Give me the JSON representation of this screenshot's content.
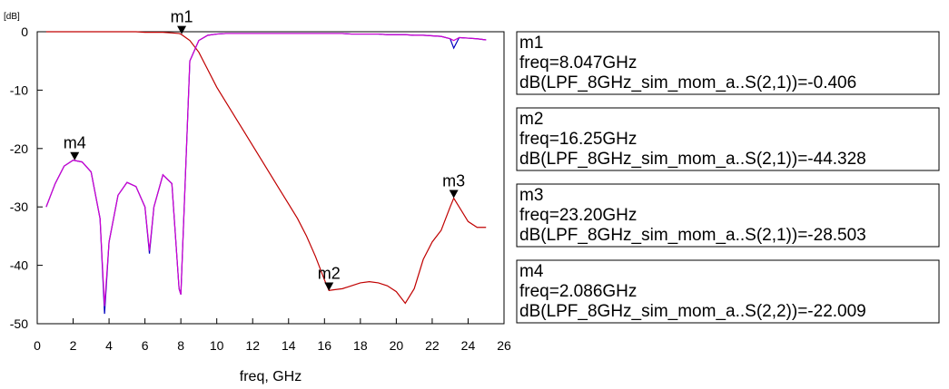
{
  "chart_data": {
    "type": "line",
    "ylabel": "[dB]",
    "xlabel": "freq, GHz",
    "xlim": [
      0,
      26
    ],
    "xticks": [
      0,
      2,
      4,
      6,
      8,
      10,
      12,
      14,
      16,
      18,
      20,
      22,
      24,
      26
    ],
    "ylim": [
      -50,
      0
    ],
    "yticks": [
      0,
      -10,
      -20,
      -30,
      -40,
      -50
    ],
    "x": [
      0.5,
      1,
      1.5,
      2,
      2.5,
      3,
      3.5,
      3.75,
      4,
      4.5,
      5,
      5.5,
      6,
      6.25,
      6.5,
      7,
      7.5,
      7.9,
      8,
      8.5,
      9,
      9.5,
      10,
      10.5,
      11,
      11.5,
      12,
      12.5,
      13,
      13.5,
      14,
      14.5,
      15,
      15.5,
      16,
      16.25,
      16.5,
      17,
      17.5,
      18,
      18.5,
      19,
      19.5,
      20,
      20.5,
      21,
      21.5,
      22,
      22.5,
      23,
      23.2,
      23.5,
      24,
      24.5,
      25
    ],
    "series": [
      {
        "color": "#c00000",
        "values": [
          0,
          0,
          0,
          0,
          0,
          0,
          0,
          0,
          0,
          0,
          0,
          0,
          -0.1,
          -0.1,
          -0.1,
          -0.1,
          -0.2,
          -0.3,
          -0.4,
          -1.5,
          -3.5,
          -6.5,
          -9.5,
          -12,
          -14.5,
          -17,
          -19.5,
          -22,
          -24.5,
          -27,
          -29.5,
          -32,
          -35,
          -38.5,
          -42.5,
          -44.3,
          -44.2,
          -44,
          -43.5,
          -43,
          -42.8,
          -43,
          -43.5,
          -44.5,
          -46.5,
          -44,
          -39,
          -36,
          -34,
          -30,
          -28.5,
          -30,
          -32.5,
          -33.5,
          -33.5
        ]
      },
      {
        "color": "#0000c0",
        "values": [
          -30,
          -26,
          -23,
          -22,
          -22.3,
          -24,
          -32,
          -48.3,
          -36,
          -28,
          -25.8,
          -26.5,
          -30,
          -38,
          -30,
          -24.5,
          -26,
          -44,
          -45,
          -5,
          -1.5,
          -0.6,
          -0.4,
          -0.3,
          -0.3,
          -0.3,
          -0.3,
          -0.3,
          -0.3,
          -0.3,
          -0.3,
          -0.3,
          -0.3,
          -0.3,
          -0.3,
          -0.3,
          -0.3,
          -0.3,
          -0.4,
          -0.4,
          -0.4,
          -0.4,
          -0.5,
          -0.5,
          -0.5,
          -0.6,
          -0.6,
          -0.7,
          -0.8,
          -1.2,
          -2.8,
          -1,
          -1.1,
          -1.2,
          -1.4
        ]
      },
      {
        "color": "#d000d0",
        "values": [
          -30,
          -26,
          -23,
          -22,
          -22.3,
          -24,
          -32,
          -47,
          -36,
          -28,
          -25.8,
          -26.5,
          -30,
          -37.5,
          -30,
          -24.5,
          -26,
          -44,
          -45,
          -5,
          -1.5,
          -0.6,
          -0.4,
          -0.3,
          -0.3,
          -0.3,
          -0.3,
          -0.3,
          -0.3,
          -0.3,
          -0.3,
          -0.3,
          -0.3,
          -0.3,
          -0.3,
          -0.3,
          -0.3,
          -0.3,
          -0.4,
          -0.4,
          -0.4,
          -0.4,
          -0.5,
          -0.5,
          -0.5,
          -0.6,
          -0.6,
          -0.7,
          -0.8,
          -1.2,
          -1.5,
          -1,
          -1.1,
          -1.2,
          -1.4
        ]
      }
    ],
    "markers": [
      {
        "label": "m1",
        "x": 8.047,
        "y": -0.406,
        "freq": "freq=8.047GHz",
        "readout": "dB(LPF_8GHz_sim_mom_a..S(2,1))=-0.406"
      },
      {
        "label": "m2",
        "x": 16.25,
        "y": -44.328,
        "freq": "freq=16.25GHz",
        "readout": "dB(LPF_8GHz_sim_mom_a..S(2,1))=-44.328"
      },
      {
        "label": "m3",
        "x": 23.2,
        "y": -28.503,
        "freq": "freq=23.20GHz",
        "readout": "dB(LPF_8GHz_sim_mom_a..S(2,1))=-28.503"
      },
      {
        "label": "m4",
        "x": 2.086,
        "y": -22.009,
        "freq": "freq=2.086GHz",
        "readout": "dB(LPF_8GHz_sim_mom_a..S(2,2))=-22.009"
      }
    ]
  }
}
